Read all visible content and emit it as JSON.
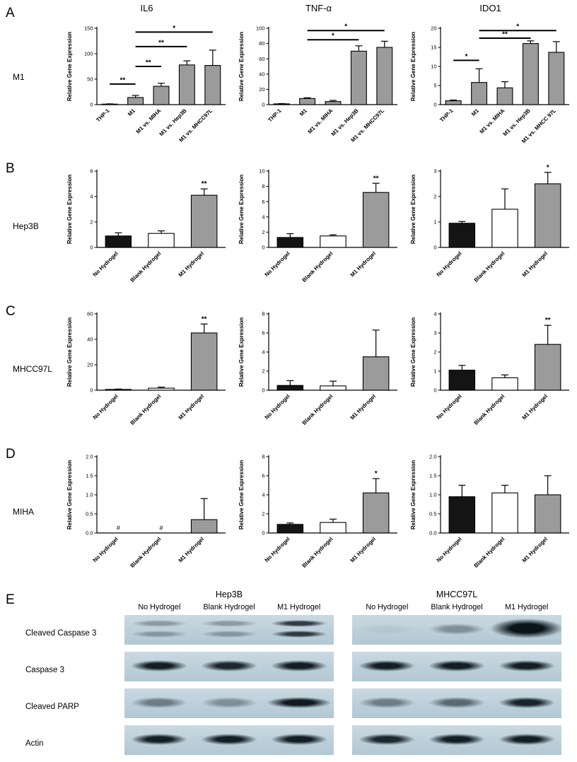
{
  "accent_colors": {
    "bar_gray": "#9b9b9b",
    "bar_black": "#141414",
    "bar_white": "#ffffff",
    "blot_bg": "#bfd3dc",
    "band_dark": "#0a141b"
  },
  "panels": [
    {
      "letter": "A",
      "row_label": "M1"
    },
    {
      "letter": "B",
      "row_label": "Hep3B"
    },
    {
      "letter": "C",
      "row_label": "MHCC97L"
    },
    {
      "letter": "D",
      "row_label": "MIHA"
    }
  ],
  "chart_data": [
    {
      "type": "bar",
      "panel": "A",
      "row": "M1",
      "title": "IL6",
      "ylabel": "Relative Gene Expression",
      "ylim": [
        0,
        150
      ],
      "yticks": [
        "0",
        "50",
        "100",
        "150"
      ],
      "categories": [
        "THP-1",
        "M1",
        "M1 vs. MIHA",
        "M1 vs. Hep3B",
        "M1 vs. MHCC97L"
      ],
      "values": [
        1,
        14,
        36,
        78,
        77
      ],
      "errors": [
        0.5,
        4,
        6,
        8,
        30
      ],
      "colors": [
        "#9b9b9b",
        "#9b9b9b",
        "#9b9b9b",
        "#9b9b9b",
        "#9b9b9b"
      ],
      "sig": [
        {
          "a": 1,
          "b": 4,
          "label": "*",
          "y": 0.05
        },
        {
          "a": 1,
          "b": 3,
          "label": "**",
          "y": 0.24
        },
        {
          "a": 1,
          "b": 2,
          "label": "**",
          "y": 0.5
        },
        {
          "a": 0,
          "b": 1,
          "label": "**",
          "y": 0.73
        }
      ]
    },
    {
      "type": "bar",
      "panel": "A",
      "row": "M1",
      "title": "TNF-α",
      "ylabel": "Relative Gene Expression",
      "ylim": [
        0,
        100
      ],
      "yticks": [
        "0",
        "20",
        "40",
        "60",
        "80",
        "100"
      ],
      "categories": [
        "THP-1",
        "M1",
        "M1 vs. MIHA",
        "M1 vs. Hep3B",
        "M1 vs. MHCC97L"
      ],
      "values": [
        1,
        8,
        4,
        70,
        75
      ],
      "errors": [
        0.3,
        1,
        1.5,
        7,
        8
      ],
      "colors": [
        "#9b9b9b",
        "#9b9b9b",
        "#9b9b9b",
        "#9b9b9b",
        "#9b9b9b"
      ],
      "sig": [
        {
          "a": 1,
          "b": 4,
          "label": "*",
          "y": 0.03
        },
        {
          "a": 1,
          "b": 3,
          "label": "*",
          "y": 0.15
        }
      ]
    },
    {
      "type": "bar",
      "panel": "A",
      "row": "M1",
      "title": "IDO1",
      "ylabel": "Relative Gene Expression",
      "ylim": [
        0,
        20
      ],
      "yticks": [
        "0",
        "5",
        "10",
        "15",
        "20"
      ],
      "categories": [
        "THP-1",
        "M1",
        "M1 vs. MIHA",
        "M1 vs. Hep3B",
        "M1 vs. MHCC 97L"
      ],
      "values": [
        1,
        5.8,
        4.4,
        16,
        13.7
      ],
      "errors": [
        0.2,
        3.6,
        1.6,
        0.7,
        2.8
      ],
      "colors": [
        "#9b9b9b",
        "#9b9b9b",
        "#9b9b9b",
        "#9b9b9b",
        "#9b9b9b"
      ],
      "sig": [
        {
          "a": 1,
          "b": 4,
          "label": "*",
          "y": 0.03
        },
        {
          "a": 1,
          "b": 3,
          "label": "**",
          "y": 0.13
        },
        {
          "a": 0,
          "b": 1,
          "label": "*",
          "y": 0.42
        }
      ]
    },
    {
      "type": "bar",
      "panel": "B",
      "row": "Hep3B",
      "title": "",
      "ylabel": "Relative  Gene Expression",
      "ylim": [
        0,
        6
      ],
      "yticks": [
        "0",
        "2",
        "4",
        "6"
      ],
      "categories": [
        "No Hydrogel",
        "Blank Hydrogel",
        "M1 Hydrogel"
      ],
      "values": [
        0.9,
        1.1,
        4.1
      ],
      "errors": [
        0.25,
        0.2,
        0.5
      ],
      "colors": [
        "#141414",
        "#ffffff",
        "#9b9b9b"
      ],
      "stars": [
        {
          "bar": 2,
          "label": "**"
        }
      ]
    },
    {
      "type": "bar",
      "panel": "B",
      "row": "Hep3B",
      "title": "",
      "ylabel": "Relative Gene Expression",
      "ylim": [
        0,
        10
      ],
      "yticks": [
        "0",
        "2",
        "4",
        "6",
        "8",
        "10"
      ],
      "categories": [
        "No Hydrogel",
        "Blank Hydrogel",
        "M1 Hydrogel"
      ],
      "values": [
        1.3,
        1.5,
        7.2
      ],
      "errors": [
        0.5,
        0.15,
        1.2
      ],
      "colors": [
        "#141414",
        "#ffffff",
        "#9b9b9b"
      ],
      "stars": [
        {
          "bar": 2,
          "label": "**"
        }
      ]
    },
    {
      "type": "bar",
      "panel": "B",
      "row": "Hep3B",
      "title": "",
      "ylabel": "Relative  Gene Expression",
      "ylim": [
        0,
        3
      ],
      "yticks": [
        "0",
        "1",
        "2",
        "3"
      ],
      "categories": [
        "No Hydrogel",
        "Blank Hydrogel",
        "M1 Hydrogel"
      ],
      "values": [
        0.95,
        1.5,
        2.5
      ],
      "errors": [
        0.07,
        0.8,
        0.45
      ],
      "colors": [
        "#141414",
        "#ffffff",
        "#9b9b9b"
      ],
      "stars": [
        {
          "bar": 2,
          "label": "*"
        }
      ]
    },
    {
      "type": "bar",
      "panel": "C",
      "row": "MHCC97L",
      "title": "",
      "ylabel": "Relative Gene Expression",
      "ylim": [
        0,
        60
      ],
      "yticks": [
        "0",
        "20",
        "40",
        "60"
      ],
      "categories": [
        "No Hydrogel",
        "Blank Hydrogel",
        "M1 Hydrogel"
      ],
      "values": [
        0.6,
        1.6,
        45
      ],
      "errors": [
        0.3,
        0.8,
        7
      ],
      "colors": [
        "#141414",
        "#ffffff",
        "#9b9b9b"
      ],
      "stars": [
        {
          "bar": 2,
          "label": "**"
        }
      ]
    },
    {
      "type": "bar",
      "panel": "C",
      "row": "MHCC97L",
      "title": "",
      "ylabel": "Relative Gene Expression",
      "ylim": [
        0,
        8
      ],
      "yticks": [
        "0",
        "2",
        "4",
        "6",
        "8"
      ],
      "categories": [
        "No Hydrogel",
        "Blank Hydrogel",
        "M1 Hydrogel"
      ],
      "values": [
        0.5,
        0.45,
        3.5
      ],
      "errors": [
        0.5,
        0.5,
        2.8
      ],
      "colors": [
        "#141414",
        "#ffffff",
        "#9b9b9b"
      ]
    },
    {
      "type": "bar",
      "panel": "C",
      "row": "MHCC97L",
      "title": "",
      "ylabel": "Relative Gene Expression",
      "ylim": [
        0,
        4
      ],
      "yticks": [
        "0",
        "1",
        "2",
        "3",
        "4"
      ],
      "categories": [
        "No Hydrogel",
        "Blank Hydrogel",
        "M1 Hydrogel"
      ],
      "values": [
        1.05,
        0.65,
        2.4
      ],
      "errors": [
        0.25,
        0.15,
        1.0
      ],
      "colors": [
        "#141414",
        "#ffffff",
        "#9b9b9b"
      ],
      "stars": [
        {
          "bar": 2,
          "label": "**"
        }
      ]
    },
    {
      "type": "bar",
      "panel": "D",
      "row": "MIHA",
      "title": "",
      "ylabel": "Relative Gene Expression",
      "ylim": [
        0,
        2
      ],
      "yticks": [
        "0.0",
        "0.5",
        "1.0",
        "1.5",
        "2.0"
      ],
      "categories": [
        "No Hydrogel",
        "Blank Hydrogel",
        "M1 Hydrogel"
      ],
      "values": [
        null,
        null,
        0.35
      ],
      "errors": [
        null,
        null,
        0.55
      ],
      "colors": [
        "#141414",
        "#ffffff",
        "#9b9b9b"
      ],
      "hash": [
        0,
        1
      ]
    },
    {
      "type": "bar",
      "panel": "D",
      "row": "MIHA",
      "title": "",
      "ylabel": "Relative Gene Expression",
      "ylim": [
        0,
        8
      ],
      "yticks": [
        "0",
        "2",
        "4",
        "6",
        "8"
      ],
      "categories": [
        "No Hydrogel",
        "Blank Hydrogel",
        "M1 Hydrogel"
      ],
      "values": [
        0.9,
        1.1,
        4.2
      ],
      "errors": [
        0.15,
        0.35,
        1.5
      ],
      "colors": [
        "#141414",
        "#ffffff",
        "#9b9b9b"
      ],
      "stars": [
        {
          "bar": 2,
          "label": "*"
        }
      ]
    },
    {
      "type": "bar",
      "panel": "D",
      "row": "MIHA",
      "title": "",
      "ylabel": "Relative Gene Expression",
      "ylim": [
        0,
        2
      ],
      "yticks": [
        "0.0",
        "0.5",
        "1.0",
        "1.5",
        "2.0"
      ],
      "categories": [
        "No Hydrogel",
        "Blank Hydrogel",
        "M1 Hydrogel"
      ],
      "values": [
        0.95,
        1.05,
        1.0
      ],
      "errors": [
        0.3,
        0.2,
        0.5
      ],
      "colors": [
        "#141414",
        "#ffffff",
        "#9b9b9b"
      ]
    }
  ],
  "blot_section": {
    "letter": "E",
    "row_labels": [
      "Cleaved Caspase 3",
      "Caspase 3",
      "Cleaved PARP",
      "Actin"
    ],
    "groups": [
      {
        "title": "Hep3B",
        "lane_headers": [
          "No Hydrogel",
          "Blank Hydrogel",
          "M1 Hydrogel"
        ],
        "strips": [
          {
            "lanes": [
              {
                "intensity": 0.3,
                "double": 1
              },
              {
                "intensity": 0.3,
                "double": 1
              },
              {
                "intensity": 0.8,
                "double": 1
              }
            ]
          },
          {
            "lanes": [
              {
                "intensity": 0.95
              },
              {
                "intensity": 0.9
              },
              {
                "intensity": 0.95
              }
            ]
          },
          {
            "lanes": [
              {
                "intensity": 0.45
              },
              {
                "intensity": 0.35
              },
              {
                "intensity": 0.97,
                "width_scale": 1.15
              }
            ]
          },
          {
            "lanes": [
              {
                "intensity": 0.95
              },
              {
                "intensity": 0.95
              },
              {
                "intensity": 0.95
              }
            ]
          }
        ]
      },
      {
        "title": "MHCC97L",
        "lane_headers": [
          "No Hydrogel",
          "Blank Hydrogel",
          "M1 Hydrogel"
        ],
        "strips": [
          {
            "lanes": [
              {
                "intensity": 0.05
              },
              {
                "intensity": 0.35
              },
              {
                "intensity": 1,
                "width_scale": 1.3,
                "tall": 1
              }
            ]
          },
          {
            "lanes": [
              {
                "intensity": 0.95
              },
              {
                "intensity": 0.95
              },
              {
                "intensity": 0.95
              }
            ]
          },
          {
            "lanes": [
              {
                "intensity": 0.45
              },
              {
                "intensity": 0.55
              },
              {
                "intensity": 0.92
              }
            ]
          },
          {
            "lanes": [
              {
                "intensity": 0.9
              },
              {
                "intensity": 0.95
              },
              {
                "intensity": 0.95
              }
            ]
          }
        ]
      }
    ]
  }
}
